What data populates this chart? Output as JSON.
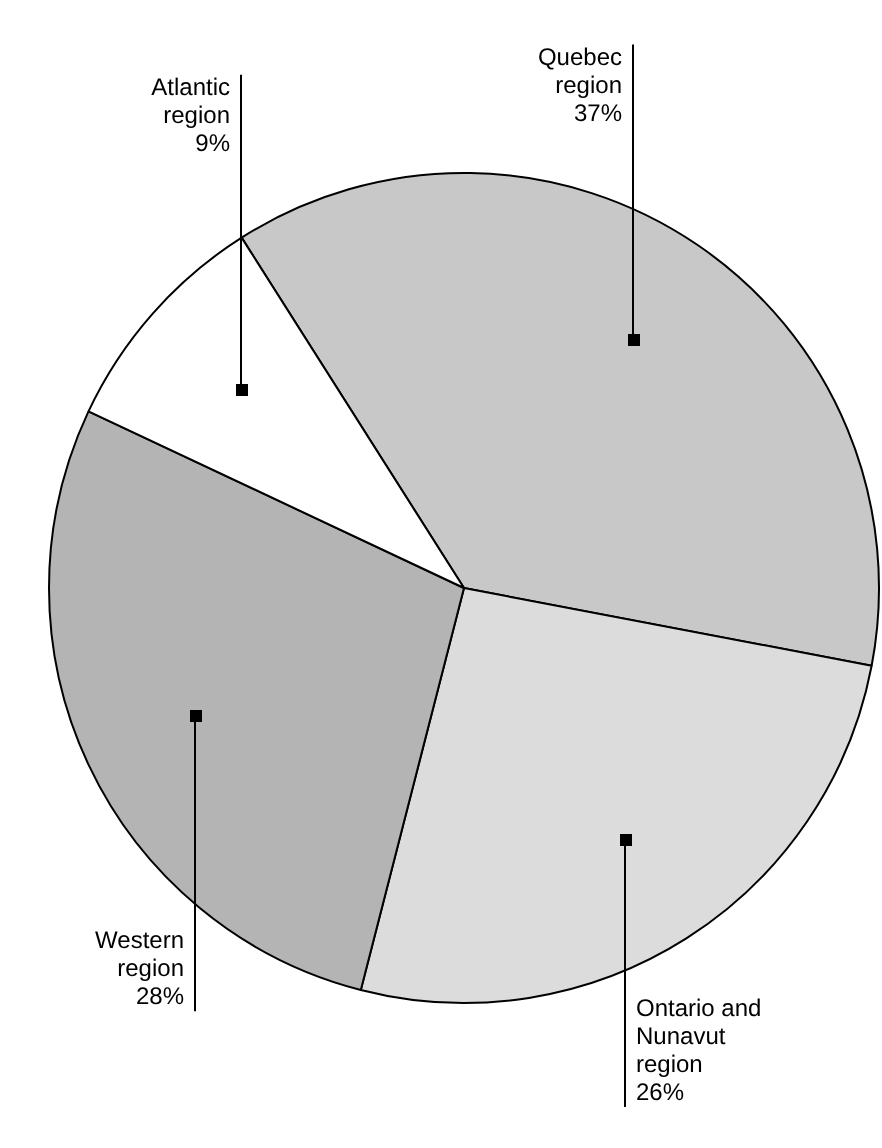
{
  "chart_data": {
    "type": "pie",
    "categories": [
      "Quebec region",
      "Ontario and Nunavut region",
      "Western region",
      "Atlantic region"
    ],
    "values": [
      37,
      26,
      28,
      9
    ],
    "colors": [
      "#c8c8c8",
      "#dcdcdc",
      "#b4b4b4",
      "#ffffff"
    ],
    "value_labels": [
      "37%",
      "26%",
      "28%",
      "9%"
    ],
    "legend": false
  }
}
